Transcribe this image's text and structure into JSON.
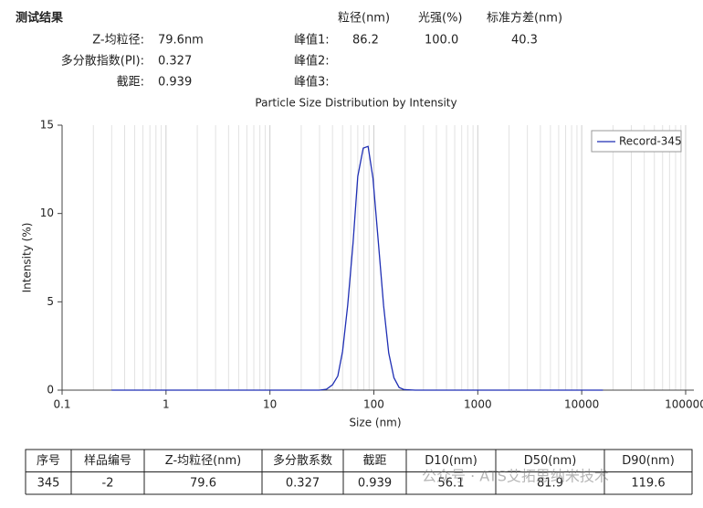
{
  "header": {
    "title": "测试结果",
    "columns": [
      "粒径(nm)",
      "光强(%)",
      "标准方差(nm)"
    ],
    "fields": [
      {
        "label": "Z-均粒径:",
        "value": "79.6nm"
      },
      {
        "label": "多分散指数(PI):",
        "value": "0.327"
      },
      {
        "label": "截距:",
        "value": "0.939"
      }
    ],
    "peaks": [
      {
        "label": "峰值1:",
        "values": [
          "86.2",
          "100.0",
          "40.3"
        ]
      },
      {
        "label": "峰值2:",
        "values": []
      },
      {
        "label": "峰值3:",
        "values": []
      }
    ]
  },
  "chart_data": {
    "type": "line",
    "title": "Particle Size Distribution by Intensity",
    "x_label": "Size (nm)",
    "y_label": "Intensity (%)",
    "xscale": "log",
    "xlim": [
      0.1,
      120000
    ],
    "xticks": [
      0.1,
      1,
      10,
      100,
      1000,
      10000,
      100000
    ],
    "minor_multipliers": [
      2,
      3,
      4,
      5,
      6,
      7,
      8,
      9
    ],
    "ylim": [
      0,
      15
    ],
    "yticks": [
      0,
      5,
      10,
      15
    ],
    "grid": true,
    "legend": "upper right",
    "series": [
      {
        "name": "Record-345",
        "color": "#1f2fb4",
        "x": [
          0.3,
          1,
          10,
          30,
          35,
          40,
          45,
          50,
          56,
          63,
          70,
          79,
          88,
          98,
          110,
          124,
          139,
          156,
          175,
          196,
          250,
          1000,
          16000
        ],
        "values": [
          0,
          0,
          0,
          0,
          0.05,
          0.3,
          0.8,
          2.2,
          4.8,
          8.3,
          12.1,
          13.7,
          13.8,
          12.0,
          8.5,
          4.8,
          2.1,
          0.7,
          0.15,
          0.03,
          0,
          0,
          0
        ]
      }
    ]
  },
  "table": {
    "headers": [
      "序号",
      "样品编号",
      "Z-均粒径(nm)",
      "多分散系数",
      "截距",
      "D10(nm)",
      "D50(nm)",
      "D90(nm)"
    ],
    "rows": [
      [
        "345",
        "-2",
        "79.6",
        "0.327",
        "0.939",
        "56.1",
        "81.9",
        "119.6"
      ]
    ]
  },
  "watermark": "公众号 · ATS艾拓思纳米技术"
}
